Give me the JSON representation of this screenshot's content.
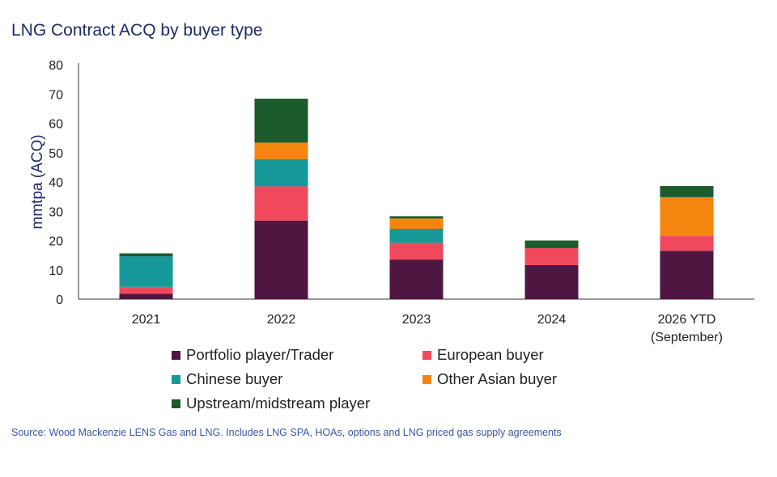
{
  "title": "LNG Contract ACQ by buyer type",
  "source": "Source: Wood Mackenzie LENS Gas and LNG. Includes LNG SPA, HOAs, options and LNG priced gas supply agreements",
  "chart_data": {
    "type": "bar",
    "stacked": true,
    "categories": [
      [
        "2021"
      ],
      [
        "2022"
      ],
      [
        "2023"
      ],
      [
        "2024"
      ],
      [
        "2026 YTD",
        "(September)"
      ]
    ],
    "ylabel": "mmtpa (ACQ)",
    "xlabel": "",
    "ylim": [
      0,
      80
    ],
    "yticks": [
      "0",
      "10",
      "20",
      "30",
      "40",
      "50",
      "60",
      "70",
      "80"
    ],
    "grid": false,
    "legend_position": "bottom",
    "series": [
      {
        "name": "Portfolio player/Trader",
        "color": "#4e1640",
        "values": [
          1.8,
          26.8,
          13.5,
          11.6,
          16.5
        ]
      },
      {
        "name": "European buyer",
        "color": "#f0495e",
        "values": [
          2.4,
          11.7,
          5.7,
          5.8,
          5.0
        ]
      },
      {
        "name": "Chinese buyer",
        "color": "#17999a",
        "values": [
          10.4,
          9.3,
          4.8,
          0,
          0
        ]
      },
      {
        "name": "Other Asian buyer",
        "color": "#f4850f",
        "values": [
          0,
          5.6,
          3.5,
          0,
          13.3
        ]
      },
      {
        "name": "Upstream/midstream player",
        "color": "#1c5b2c",
        "values": [
          1.0,
          15.0,
          0.8,
          2.6,
          3.8
        ]
      }
    ]
  }
}
